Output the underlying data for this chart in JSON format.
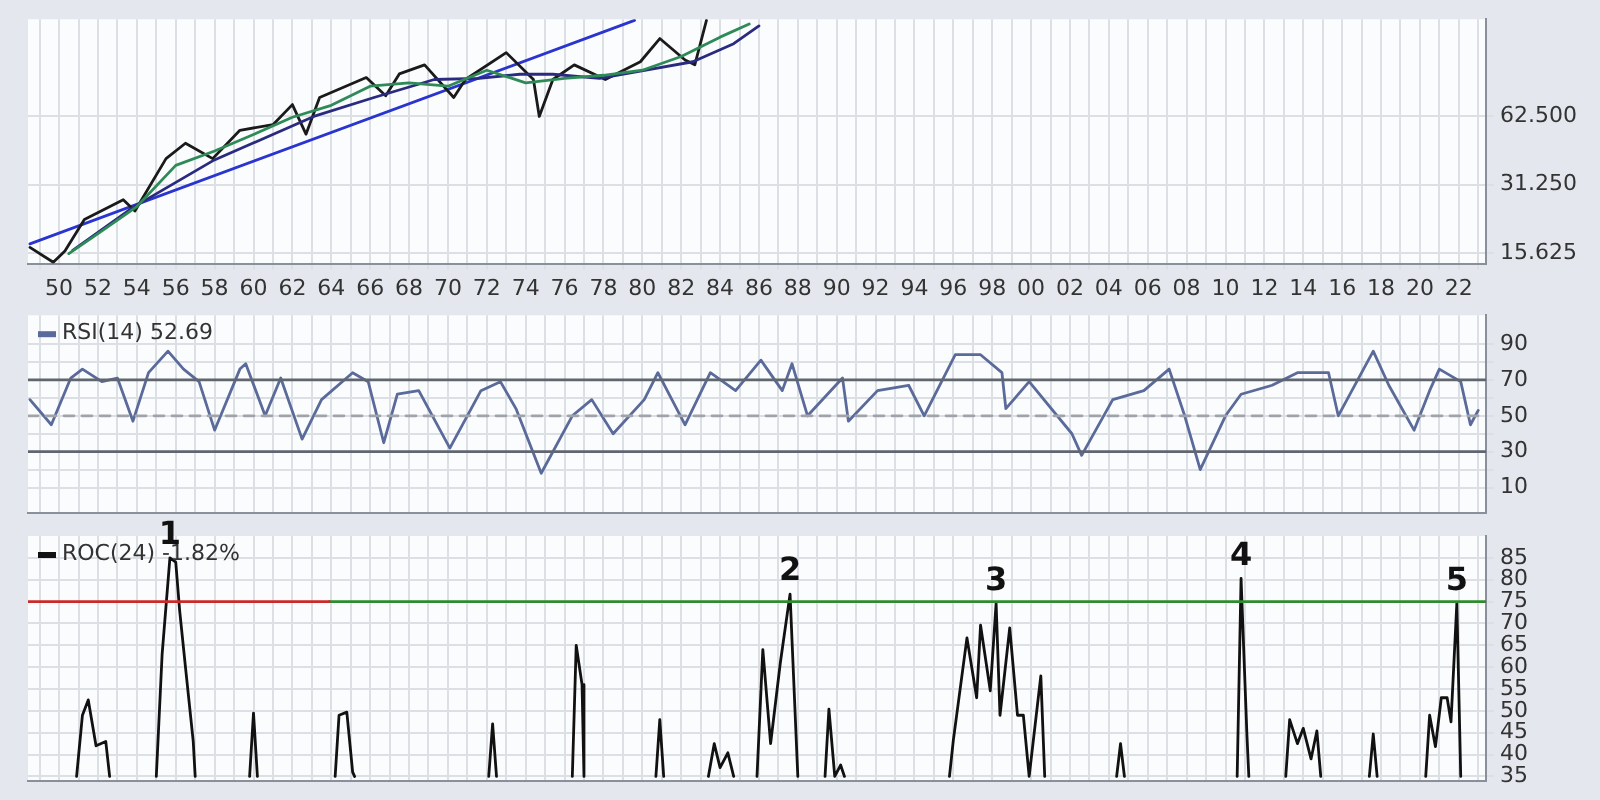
{
  "chart_data": [
    {
      "type": "line",
      "xlim": [
        1948.4,
        2023.4
      ],
      "ylim": [
        14,
        168
      ],
      "log": "y",
      "grid": true,
      "xticks": [
        {
          "value": 1949,
          "label": null
        },
        {
          "value": 1950,
          "label": "50"
        },
        {
          "value": 1951,
          "label": null
        },
        {
          "value": 1952,
          "label": "52"
        },
        {
          "value": 1953,
          "label": null
        },
        {
          "value": 1954,
          "label": "54"
        },
        {
          "value": 1955,
          "label": null
        },
        {
          "value": 1956,
          "label": "56"
        },
        {
          "value": 1957,
          "label": null
        },
        {
          "value": 1958,
          "label": "58"
        },
        {
          "value": 1959,
          "label": null
        },
        {
          "value": 1960,
          "label": "60"
        },
        {
          "value": 1961,
          "label": null
        },
        {
          "value": 1962,
          "label": "62"
        },
        {
          "value": 1963,
          "label": null
        },
        {
          "value": 1964,
          "label": "64"
        },
        {
          "value": 1965,
          "label": null
        },
        {
          "value": 1966,
          "label": "66"
        },
        {
          "value": 1967,
          "label": null
        },
        {
          "value": 1968,
          "label": "68"
        },
        {
          "value": 1969,
          "label": null
        },
        {
          "value": 1970,
          "label": "70"
        },
        {
          "value": 1971,
          "label": null
        },
        {
          "value": 1972,
          "label": "72"
        },
        {
          "value": 1973,
          "label": null
        },
        {
          "value": 1974,
          "label": "74"
        },
        {
          "value": 1975,
          "label": null
        },
        {
          "value": 1976,
          "label": "76"
        },
        {
          "value": 1977,
          "label": null
        },
        {
          "value": 1978,
          "label": "78"
        },
        {
          "value": 1979,
          "label": null
        },
        {
          "value": 1980,
          "label": "80"
        },
        {
          "value": 1981,
          "label": null
        },
        {
          "value": 1982,
          "label": "82"
        },
        {
          "value": 1983,
          "label": null
        },
        {
          "value": 1984,
          "label": "84"
        },
        {
          "value": 1985,
          "label": null
        },
        {
          "value": 1986,
          "label": "86"
        },
        {
          "value": 1987,
          "label": null
        },
        {
          "value": 1988,
          "label": "88"
        },
        {
          "value": 1989,
          "label": null
        },
        {
          "value": 1990,
          "label": "90"
        },
        {
          "value": 1991,
          "label": null
        },
        {
          "value": 1992,
          "label": "92"
        },
        {
          "value": 1993,
          "label": null
        },
        {
          "value": 1994,
          "label": "94"
        },
        {
          "value": 1995,
          "label": null
        },
        {
          "value": 1996,
          "label": "96"
        },
        {
          "value": 1997,
          "label": null
        },
        {
          "value": 1998,
          "label": "98"
        },
        {
          "value": 1999,
          "label": null
        },
        {
          "value": 2000,
          "label": "00"
        },
        {
          "value": 2001,
          "label": null
        },
        {
          "value": 2002,
          "label": "02"
        },
        {
          "value": 2003,
          "label": null
        },
        {
          "value": 2004,
          "label": "04"
        },
        {
          "value": 2005,
          "label": null
        },
        {
          "value": 2006,
          "label": "06"
        },
        {
          "value": 2007,
          "label": null
        },
        {
          "value": 2008,
          "label": "08"
        },
        {
          "value": 2009,
          "label": null
        },
        {
          "value": 2010,
          "label": "10"
        },
        {
          "value": 2011,
          "label": null
        },
        {
          "value": 2012,
          "label": "12"
        },
        {
          "value": 2013,
          "label": null
        },
        {
          "value": 2014,
          "label": "14"
        },
        {
          "value": 2015,
          "label": null
        },
        {
          "value": 2016,
          "label": "16"
        },
        {
          "value": 2017,
          "label": null
        },
        {
          "value": 2018,
          "label": "18"
        },
        {
          "value": 2019,
          "label": null
        },
        {
          "value": 2020,
          "label": "20"
        },
        {
          "value": 2021,
          "label": null
        },
        {
          "value": 2022,
          "label": "22"
        },
        {
          "value": 2023,
          "label": null
        }
      ],
      "yticks": [
        {
          "value": 15.625,
          "label": "15.625"
        },
        {
          "value": 31.25,
          "label": "31.250"
        },
        {
          "value": 62.5,
          "label": "62.500"
        }
      ],
      "series": [
        {
          "color": "#2e8b57",
          "x": [
            1950.5,
            1952,
            1954,
            1956,
            1958,
            1960,
            1962,
            1964,
            1966,
            1968,
            1970,
            1972,
            1974,
            1976,
            1978,
            1980,
            1982,
            1984,
            1985.5
          ],
          "values": [
            15.5,
            19,
            25,
            38,
            44,
            52,
            62,
            70,
            85,
            88,
            85,
            100,
            88,
            92,
            95,
            100,
            115,
            140,
            160
          ]
        },
        {
          "color": "#2a2a80",
          "x": [
            1950.7,
            1953.8,
            1957.9,
            1963.1,
            1966.2,
            1969.3,
            1971.6,
            1973.7,
            1975.4,
            1977.8,
            1979.9,
            1982.6,
            1984.7,
            1986.0
          ],
          "values": [
            16,
            24.8,
            39.8,
            62.5,
            75.8,
            91,
            92,
            96,
            96,
            92,
            99,
            109,
            131,
            157
          ]
        },
        {
          "color": "#1a1a1a",
          "x": [
            1948.5,
            1949.7,
            1950.3,
            1951.3,
            1953.3,
            1953.9,
            1955.5,
            1956.5,
            1957.9,
            1959.3,
            1961.0,
            1962.0,
            1962.7,
            1963.4,
            1965.8,
            1966.8,
            1967.5,
            1968.8,
            1970.3,
            1970.9,
            1973.0,
            1974.4,
            1974.7,
            1975.4,
            1976.5,
            1978.1,
            1979.9,
            1980.9,
            1982.2,
            1982.7,
            1983.3
          ],
          "values": [
            16.5,
            14.2,
            15.9,
            21.9,
            26.8,
            23.9,
            40.7,
            47.6,
            40.7,
            54.3,
            57.5,
            70.5,
            52.2,
            75.8,
            92.8,
            77.2,
            96.3,
            105.6,
            75.8,
            91,
            119.6,
            91,
            62.5,
            91,
            105.6,
            91,
            109,
            138,
            111,
            105.6,
            166
          ]
        },
        {
          "color": "#2a35d0",
          "x": [
            1948.5,
            1979.6
          ],
          "values": [
            17.1,
            166
          ]
        }
      ]
    },
    {
      "type": "line",
      "xlim": [
        1948.4,
        2023.4
      ],
      "ylim": [
        -4,
        106
      ],
      "grid": true,
      "tick_labels": "y",
      "legend": "top left",
      "xticks": [
        1949,
        1950,
        1951,
        1952,
        1953,
        1954,
        1955,
        1956,
        1957,
        1958,
        1959,
        1960,
        1961,
        1962,
        1963,
        1964,
        1965,
        1966,
        1967,
        1968,
        1969,
        1970,
        1971,
        1972,
        1973,
        1974,
        1975,
        1976,
        1977,
        1978,
        1979,
        1980,
        1981,
        1982,
        1983,
        1984,
        1985,
        1986,
        1987,
        1988,
        1989,
        1990,
        1991,
        1992,
        1993,
        1994,
        1995,
        1996,
        1997,
        1998,
        1999,
        2000,
        2001,
        2002,
        2003,
        2004,
        2005,
        2006,
        2007,
        2008,
        2009,
        2010,
        2011,
        2012,
        2013,
        2014,
        2015,
        2016,
        2017,
        2018,
        2019,
        2020,
        2021,
        2022,
        2023
      ],
      "yticks": [
        10,
        {
          "value": 20,
          "label": null
        },
        30,
        {
          "value": 40,
          "label": null
        },
        50,
        {
          "value": 60,
          "label": null
        },
        70,
        {
          "value": 80,
          "label": null
        },
        90
      ],
      "series": [
        {
          "color": "#5f6670",
          "x": [
            1948.4,
            2023.4
          ],
          "values": [
            70,
            70
          ]
        },
        {
          "color": "#5f6670",
          "x": [
            1948.4,
            2023.4
          ],
          "values": [
            30,
            30
          ]
        },
        {
          "color": "#a0a4aa",
          "line_style": "dashed",
          "x": [
            1948.4,
            2023.4
          ],
          "values": [
            50,
            50
          ]
        },
        {
          "name": "RSI(14) 52.69",
          "color": "#5a6a9a",
          "x": [
            1948.5,
            1949.6,
            1950.6,
            1951.2,
            1952.2,
            1953.0,
            1953.8,
            1954.6,
            1955.6,
            1956.4,
            1957.2,
            1958.0,
            1959.3,
            1959.6,
            1960.6,
            1961.4,
            1962.5,
            1963.5,
            1965.1,
            1965.9,
            1966.7,
            1967.4,
            1968.5,
            1970.1,
            1971.7,
            1972.7,
            1973.5,
            1974.8,
            1976.4,
            1977.4,
            1978.5,
            1980.1,
            1980.8,
            1982.2,
            1983.5,
            1984.8,
            1986.1,
            1987.2,
            1987.7,
            1988.5,
            1990.3,
            1990.6,
            1992.1,
            1993.7,
            1994.5,
            1996.1,
            1997.4,
            1998.5,
            1998.7,
            1999.9,
            2002.1,
            2002.6,
            2004.2,
            2005.8,
            2007.1,
            2007.9,
            2008.7,
            2010.0,
            2010.8,
            2012.4,
            2013.7,
            2015.3,
            2015.8,
            2017.6,
            2018.4,
            2019.7,
            2020.5,
            2021.0,
            2022.1,
            2022.6,
            2023.0
          ],
          "values": [
            59,
            45,
            71,
            76,
            69,
            71,
            47,
            74,
            86,
            76,
            69,
            42,
            76,
            79,
            50,
            71,
            37,
            59,
            74,
            69,
            35,
            62,
            64,
            32,
            64,
            69,
            54,
            18,
            50,
            59,
            40,
            59,
            74,
            45,
            74,
            64,
            81,
            64,
            79,
            50,
            71,
            47,
            64,
            67,
            50,
            84,
            84,
            74,
            54,
            69,
            40,
            28,
            59,
            64,
            76,
            50,
            20,
            50,
            62,
            67,
            74,
            74,
            50,
            86,
            67,
            42,
            64,
            76,
            69,
            45,
            53
          ]
        }
      ]
    },
    {
      "type": "line",
      "xlim": [
        1948.4,
        2023.4
      ],
      "ylim": [
        34,
        90
      ],
      "grid": true,
      "tick_labels": "y",
      "legend": "top left",
      "xticks": [
        1949,
        1950,
        1951,
        1952,
        1953,
        1954,
        1955,
        1956,
        1957,
        1958,
        1959,
        1960,
        1961,
        1962,
        1963,
        1964,
        1965,
        1966,
        1967,
        1968,
        1969,
        1970,
        1971,
        1972,
        1973,
        1974,
        1975,
        1976,
        1977,
        1978,
        1979,
        1980,
        1981,
        1982,
        1983,
        1984,
        1985,
        1986,
        1987,
        1988,
        1989,
        1990,
        1991,
        1992,
        1993,
        1994,
        1995,
        1996,
        1997,
        1998,
        1999,
        2000,
        2001,
        2002,
        2003,
        2004,
        2005,
        2006,
        2007,
        2008,
        2009,
        2010,
        2011,
        2012,
        2013,
        2014,
        2015,
        2016,
        2017,
        2018,
        2019,
        2020,
        2021,
        2022,
        2023
      ],
      "yticks": [
        35,
        40,
        45,
        50,
        55,
        60,
        65,
        70,
        75,
        80,
        85
      ],
      "annotations": [
        {
          "text": "1",
          "x": 1955.7,
          "y": 85
        },
        {
          "text": "2",
          "x": 1987.6,
          "y": 76.7
        },
        {
          "text": "3",
          "x": 1998.2,
          "y": 74.6
        },
        {
          "text": "4",
          "x": 2010.8,
          "y": 80.3
        },
        {
          "text": "5",
          "x": 2021.9,
          "y": 74.6
        }
      ],
      "series": [
        {
          "color": "#cc2a2a",
          "x": [
            1948.4,
            1963.9
          ],
          "values": [
            75,
            75
          ]
        },
        {
          "color": "#2e8b2e",
          "x": [
            1963.9,
            2023.4
          ],
          "values": [
            75,
            75
          ]
        },
        {
          "name": "ROC(24) -1.82%",
          "color": "#111111",
          "x": [
            1950.9,
            1951.2,
            1951.5,
            1951.9,
            1952.4,
            1952.6,
            1953,
            1955.0,
            1955.3,
            1955.7,
            1956.0,
            1956.2,
            1956.5,
            1956.9,
            1957.0,
            1958,
            1959.8,
            1960.0,
            1960.2,
            1962,
            1964.2,
            1964.4,
            1964.8,
            1965.1,
            1965.2,
            1968,
            1972.1,
            1972.3,
            1972.5,
            1974,
            1976.4,
            1976.6,
            1976.9,
            1977.0,
            1979,
            1980.7,
            1980.9,
            1981.1,
            1982,
            1983.4,
            1983.7,
            1984.0,
            1984.4,
            1984.7,
            1985.2,
            1985.9,
            1986.2,
            1986.6,
            1987.1,
            1987.6,
            1988.0,
            1989,
            1989.4,
            1989.6,
            1989.9,
            1990.2,
            1990.4,
            1993,
            1995.8,
            1996.0,
            1996.7,
            1997.2,
            1997.4,
            1997.9,
            1998.2,
            1998.4,
            1998.9,
            1999.3,
            1999.6,
            1999.9,
            2000.5,
            2000.7,
            2002,
            2004.4,
            2004.6,
            2004.8,
            2008,
            2010.6,
            2010.8,
            2011.1,
            2011.2,
            2012,
            2013.1,
            2013.3,
            2013.7,
            2014.0,
            2014.4,
            2014.7,
            2014.9,
            2016,
            2017.4,
            2017.6,
            2017.8,
            2019,
            2020.3,
            2020.5,
            2020.8,
            2021.1,
            2021.4,
            2021.6,
            2021.9,
            2022.1
          ],
          "values": [
            35,
            49,
            52.5,
            42,
            43,
            35,
            null,
            35,
            63,
            85,
            84,
            73,
            60,
            43,
            35,
            null,
            35,
            49.5,
            35,
            null,
            35,
            49,
            49.7,
            36,
            35,
            null,
            35,
            47,
            35,
            null,
            35,
            65,
            56,
            35,
            null,
            35,
            48,
            35,
            null,
            35,
            42.5,
            37,
            40.4,
            35,
            null,
            35,
            64,
            42.5,
            61,
            76.7,
            35,
            null,
            35,
            50.4,
            35,
            37.6,
            35,
            null,
            35,
            43.3,
            66.7,
            53,
            69.6,
            54.6,
            74.6,
            49,
            69,
            49,
            49,
            35,
            58,
            35,
            null,
            35,
            42.5,
            35,
            null,
            35,
            80.3,
            44.7,
            35,
            null,
            35,
            48,
            42.5,
            46,
            39,
            45.4,
            35,
            null,
            35,
            44.7,
            35,
            null,
            35,
            49,
            41.8,
            53,
            53,
            47.5,
            74.6,
            35
          ]
        }
      ]
    }
  ]
}
